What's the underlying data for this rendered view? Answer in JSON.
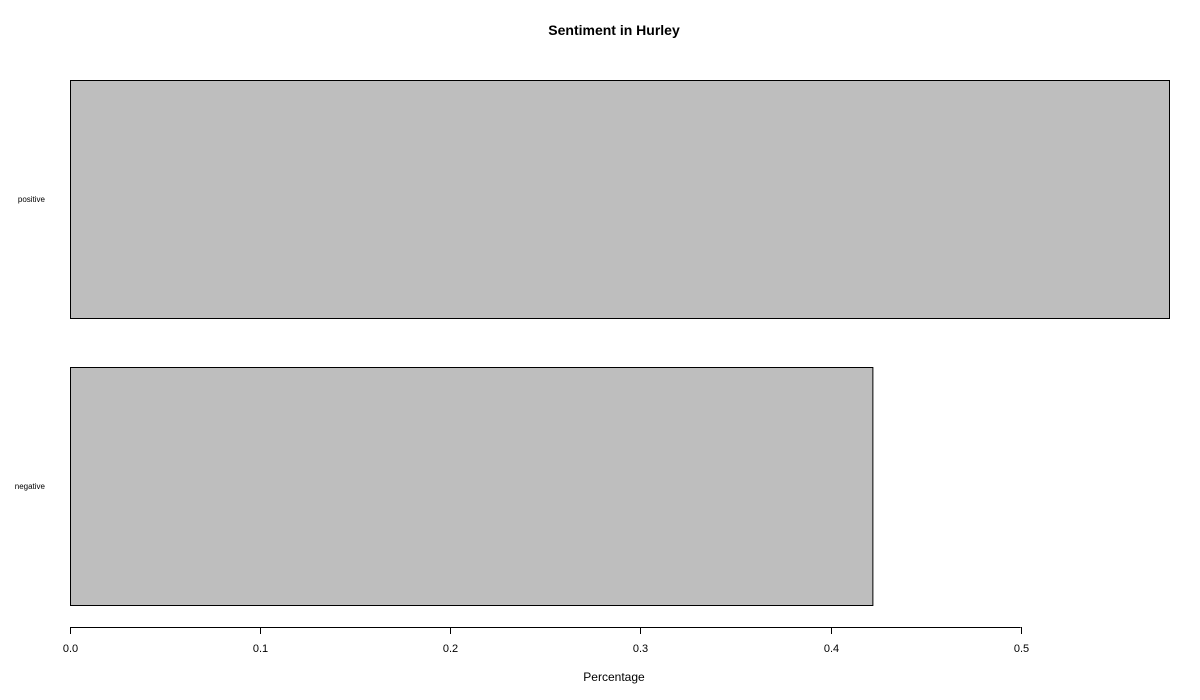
{
  "chart_data": {
    "type": "bar",
    "orientation": "horizontal",
    "title": "Sentiment in Hurley",
    "xlabel": "Percentage",
    "ylabel": "",
    "categories": [
      "positive",
      "negative"
    ],
    "values": [
      0.578,
      0.422
    ],
    "xlim": [
      0,
      0.578
    ],
    "xticks": [
      0.0,
      0.1,
      0.2,
      0.3,
      0.4,
      0.5
    ],
    "xtick_labels": [
      "0.0",
      "0.1",
      "0.2",
      "0.3",
      "0.4",
      "0.5"
    ],
    "bar_color": "#bebebe",
    "bar_border_color": "#000000",
    "grid": false,
    "legend": "none"
  }
}
